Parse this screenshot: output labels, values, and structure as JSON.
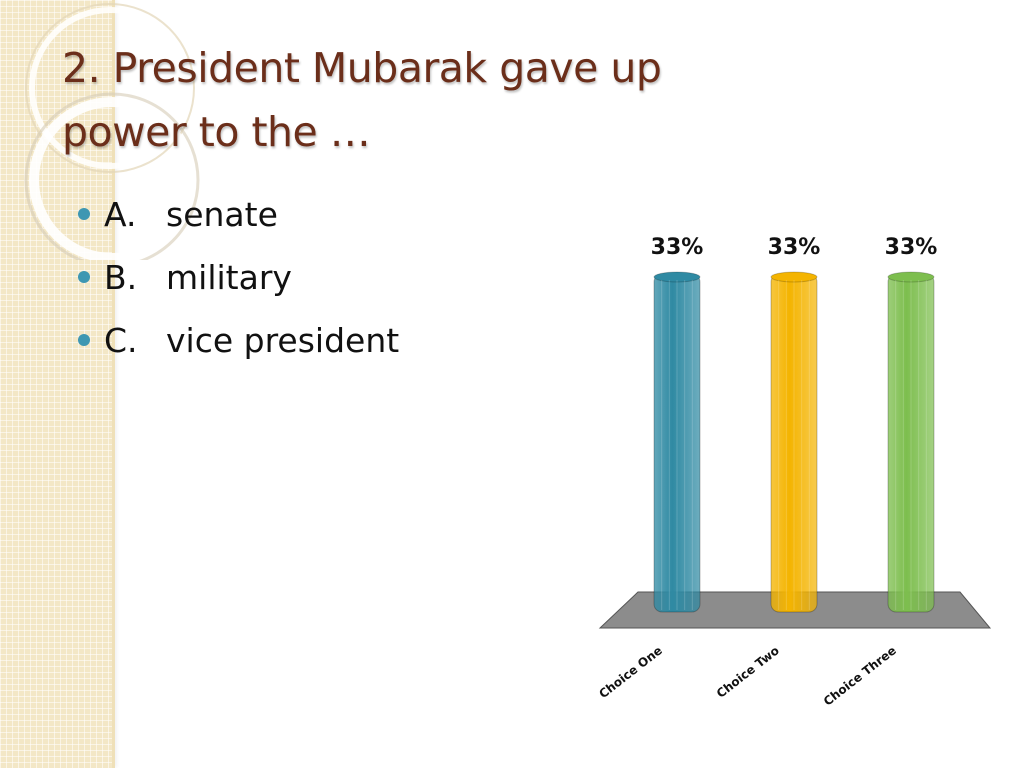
{
  "slide": {
    "title_line1": "2.  President Mubarak gave up",
    "title_line2": "power to the …",
    "options": [
      {
        "letter": "A.",
        "text": "senate"
      },
      {
        "letter": "B.",
        "text": "military"
      },
      {
        "letter": "C.",
        "text": "vice president"
      }
    ],
    "bullet_color": "#3e97b2",
    "title_color": "#6b2e1a"
  },
  "chart_data": {
    "type": "bar",
    "categories": [
      "Choice One",
      "Choice Two",
      "Choice Three"
    ],
    "values": [
      33,
      33,
      33
    ],
    "value_labels": [
      "33%",
      "33%",
      "33%"
    ],
    "colors": [
      "#2f8aa3",
      "#f4b400",
      "#7dbe4e"
    ],
    "floor_color": "#8c8c8c",
    "ylim": [
      0,
      33
    ],
    "grid": false,
    "legend": "none"
  }
}
